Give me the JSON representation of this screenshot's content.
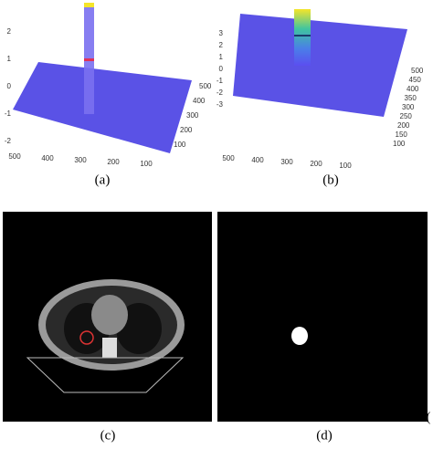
{
  "panels": [
    {
      "label": "(a)",
      "z_ticks": [
        2,
        1,
        0,
        -1,
        -2
      ],
      "x_ticks": [
        500,
        400,
        300,
        200,
        100
      ],
      "y_ticks": [
        500,
        400,
        300,
        200,
        100
      ]
    },
    {
      "label": "(b)",
      "z_ticks": [
        3,
        2,
        1,
        0,
        -1,
        -2,
        -3
      ],
      "x_ticks": [
        500,
        400,
        300,
        200,
        100
      ],
      "y_ticks": [
        500,
        450,
        400,
        350,
        300,
        250,
        200,
        150,
        100
      ]
    },
    {
      "label": "(c)"
    },
    {
      "label": "(d)"
    }
  ],
  "trailing_text": "("
}
